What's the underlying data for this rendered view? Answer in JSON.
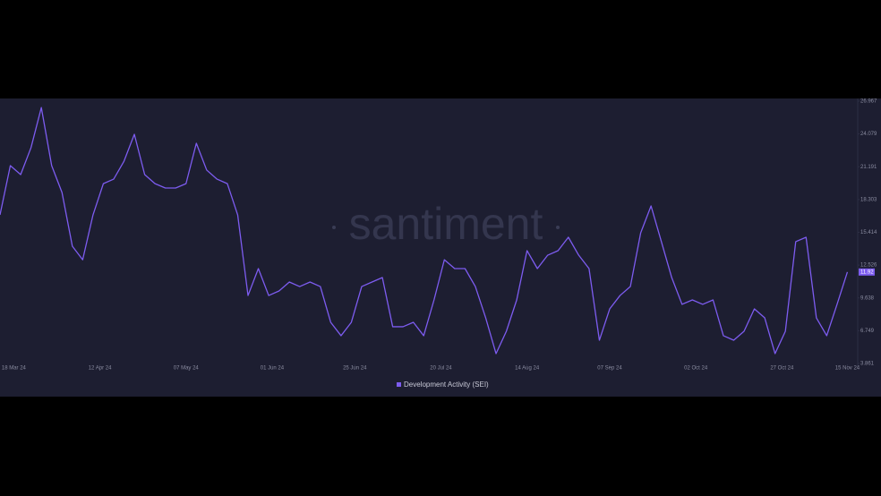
{
  "chart_data": {
    "type": "line",
    "watermark": "santiment",
    "x": [
      "2024-03-14",
      "2024-03-17",
      "2024-03-20",
      "2024-03-23",
      "2024-03-26",
      "2024-03-29",
      "2024-04-01",
      "2024-04-04",
      "2024-04-07",
      "2024-04-10",
      "2024-04-13",
      "2024-04-16",
      "2024-04-19",
      "2024-04-22",
      "2024-04-25",
      "2024-04-28",
      "2024-05-01",
      "2024-05-04",
      "2024-05-07",
      "2024-05-10",
      "2024-05-13",
      "2024-05-16",
      "2024-05-19",
      "2024-05-22",
      "2024-05-25",
      "2024-05-28",
      "2024-05-31",
      "2024-06-03",
      "2024-06-06",
      "2024-06-09",
      "2024-06-12",
      "2024-06-15",
      "2024-06-18",
      "2024-06-21",
      "2024-06-24",
      "2024-06-27",
      "2024-06-30",
      "2024-07-03",
      "2024-07-06",
      "2024-07-09",
      "2024-07-12",
      "2024-07-15",
      "2024-07-18",
      "2024-07-21",
      "2024-07-24",
      "2024-07-27",
      "2024-07-30",
      "2024-08-02",
      "2024-08-05",
      "2024-08-08",
      "2024-08-11",
      "2024-08-14",
      "2024-08-17",
      "2024-08-20",
      "2024-08-23",
      "2024-08-26",
      "2024-08-29",
      "2024-09-01",
      "2024-09-04",
      "2024-09-07",
      "2024-09-10",
      "2024-09-13",
      "2024-09-16",
      "2024-09-19",
      "2024-09-22",
      "2024-09-25",
      "2024-09-28",
      "2024-10-01",
      "2024-10-04",
      "2024-10-07",
      "2024-10-10",
      "2024-10-13",
      "2024-10-16",
      "2024-10-19",
      "2024-10-22",
      "2024-10-25",
      "2024-10-28",
      "2024-10-31",
      "2024-11-03",
      "2024-11-06",
      "2024-11-09",
      "2024-11-12",
      "2024-11-15"
    ],
    "series": [
      {
        "name": "Development Activity (SEI)",
        "color": "#7d5cf0",
        "values": [
          16.95,
          21.29,
          20.5,
          22.87,
          26.4,
          21.29,
          18.92,
          14.19,
          13.0,
          16.95,
          19.7,
          20.1,
          21.68,
          24.05,
          20.5,
          19.7,
          19.32,
          19.32,
          19.7,
          23.26,
          20.9,
          20.1,
          19.7,
          16.95,
          9.85,
          12.22,
          9.85,
          10.25,
          11.04,
          10.64,
          11.04,
          10.64,
          7.49,
          6.31,
          7.49,
          10.64,
          11.04,
          11.43,
          7.1,
          7.1,
          7.49,
          6.31,
          9.46,
          13.0,
          12.22,
          12.22,
          10.64,
          7.88,
          4.73,
          6.7,
          9.46,
          13.8,
          12.22,
          13.4,
          13.8,
          14.98,
          13.4,
          12.22,
          5.91,
          8.67,
          9.85,
          10.64,
          15.37,
          17.74,
          14.59,
          11.43,
          9.07,
          9.46,
          9.07,
          9.46,
          6.31,
          5.91,
          6.7,
          8.67,
          7.88,
          4.73,
          6.7,
          14.59,
          14.98,
          7.88,
          6.31,
          9.07,
          11.92
        ]
      }
    ],
    "xlim": [
      "2024-03-14",
      "2024-11-18"
    ],
    "xticks": [
      {
        "value": "2024-03-18",
        "label": "18 Mar 24"
      },
      {
        "value": "2024-04-12",
        "label": "12 Apr 24"
      },
      {
        "value": "2024-05-07",
        "label": "07 May 24"
      },
      {
        "value": "2024-06-01",
        "label": "01 Jun 24"
      },
      {
        "value": "2024-06-25",
        "label": "25 Jun 24"
      },
      {
        "value": "2024-07-20",
        "label": "20 Jul 24"
      },
      {
        "value": "2024-08-14",
        "label": "14 Aug 24"
      },
      {
        "value": "2024-09-07",
        "label": "07 Sep 24"
      },
      {
        "value": "2024-10-02",
        "label": "02 Oct 24"
      },
      {
        "value": "2024-10-27",
        "label": "27 Oct 24"
      },
      {
        "value": "2024-11-15",
        "label": "15 Nov 24"
      }
    ],
    "ylim": [
      3.861,
      26.967
    ],
    "yticks": [
      3.861,
      6.749,
      9.638,
      12.526,
      15.414,
      18.303,
      21.191,
      24.079,
      26.967
    ],
    "legend": "bottom"
  }
}
